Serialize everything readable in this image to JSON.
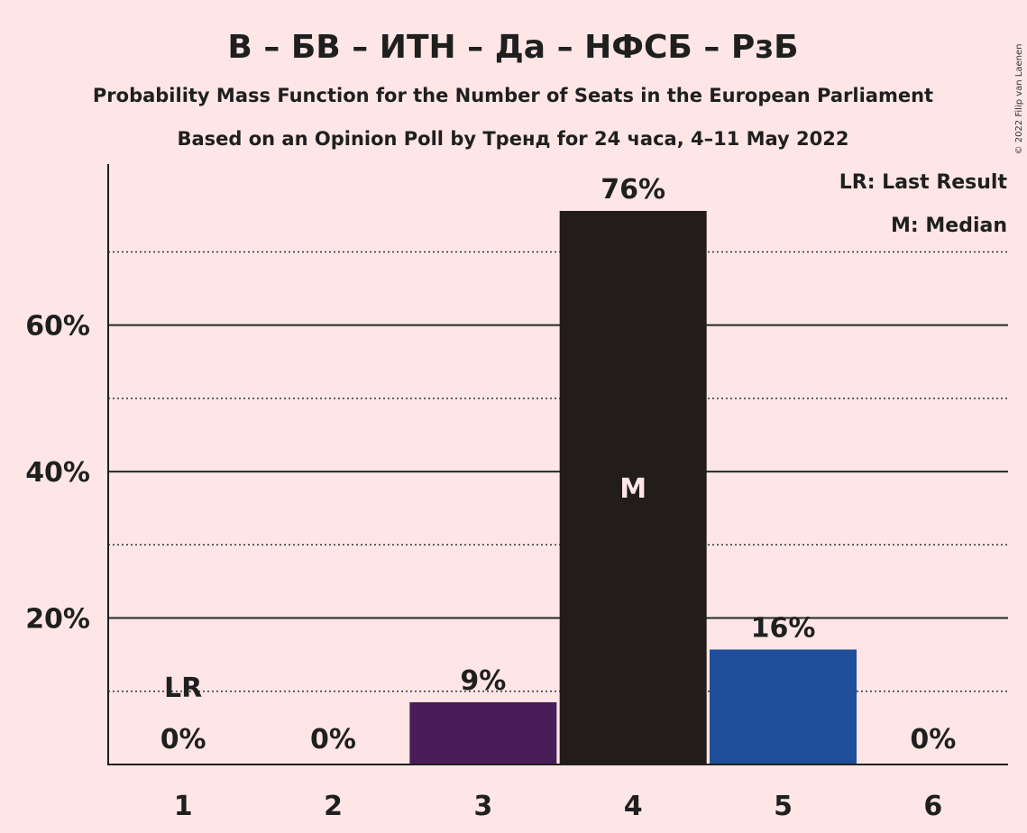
{
  "title": "В – БВ – ИТН – Да – НФСБ – РзБ",
  "subtitle1": "Probability Mass Function for the Number of Seats in the European Parliament",
  "subtitle2": "Based on an Opinion Poll by Тренд for 24 часа, 4–11 May 2022",
  "legend": {
    "lr": "LR: Last Result",
    "m": "M: Median"
  },
  "copyright": "© 2022 Filip van Laenen",
  "chart_data": {
    "type": "bar",
    "categories": [
      "1",
      "2",
      "3",
      "4",
      "5",
      "6"
    ],
    "values": [
      0,
      0,
      8.5,
      75.6,
      15.7,
      0
    ],
    "value_labels": [
      "0%",
      "0%",
      "9%",
      "76%",
      "16%",
      "0%"
    ],
    "bar_colors": [
      "#491C5A",
      "#491C5A",
      "#491C5A",
      "#221C1A",
      "#1F4E9A",
      "#1F4E9A"
    ],
    "ylim": [
      0,
      82
    ],
    "yticks": [
      20,
      40,
      60
    ],
    "ytick_labels": [
      "20%",
      "40%",
      "60%"
    ],
    "minor_gridlines": [
      10,
      30,
      50,
      70
    ],
    "last_result": {
      "category": "1",
      "label": "LR"
    },
    "median": {
      "category": "4",
      "label": "M"
    }
  }
}
